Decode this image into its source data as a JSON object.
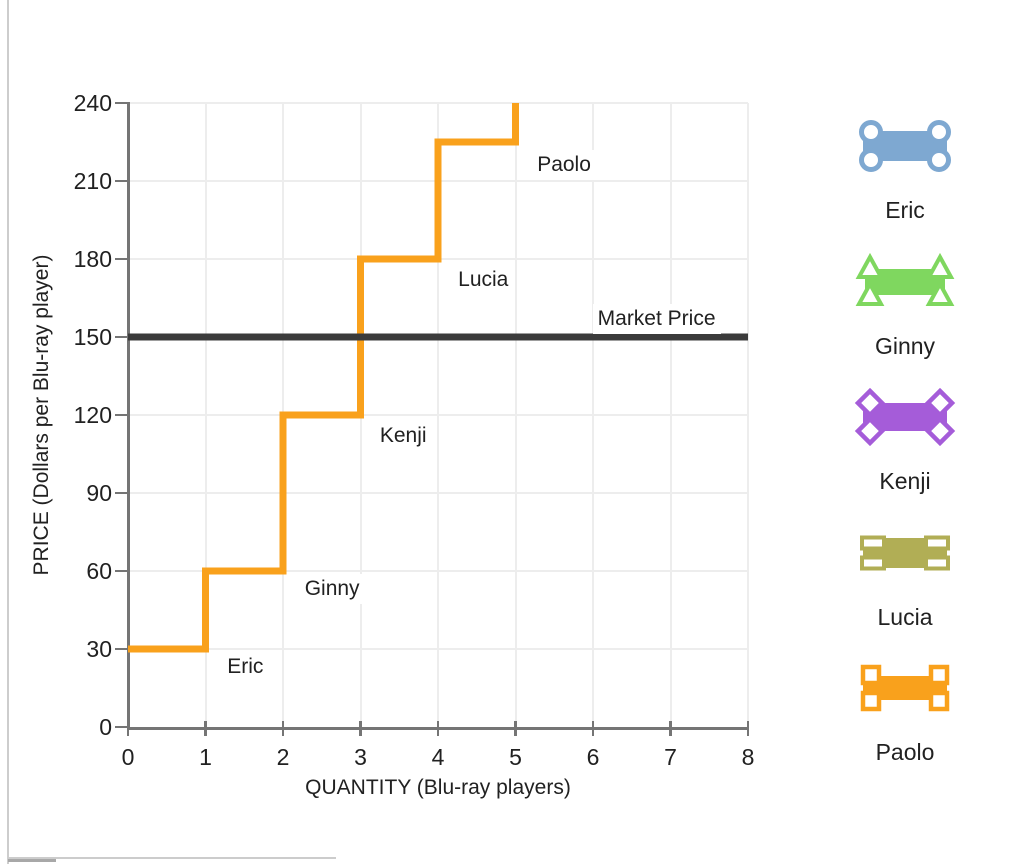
{
  "chart_data": {
    "type": "line",
    "subtype": "step-supply-schedule",
    "xlabel": "QUANTITY (Blu-ray players)",
    "ylabel": "PRICE (Dollars per Blu-ray player)",
    "xlim": [
      0,
      8
    ],
    "ylim": [
      0,
      240
    ],
    "x_ticks": [
      0,
      1,
      2,
      3,
      4,
      5,
      6,
      7,
      8
    ],
    "y_ticks": [
      0,
      30,
      60,
      90,
      120,
      150,
      180,
      210,
      240
    ],
    "grid": "on",
    "supply_steps": [
      {
        "name": "Eric",
        "price": 30,
        "from_q": 0,
        "to_q": 1
      },
      {
        "name": "Ginny",
        "price": 60,
        "from_q": 1,
        "to_q": 2
      },
      {
        "name": "Kenji",
        "price": 120,
        "from_q": 2,
        "to_q": 3
      },
      {
        "name": "Lucia",
        "price": 180,
        "from_q": 3,
        "to_q": 4
      },
      {
        "name": "Paolo",
        "price": 225,
        "from_q": 4,
        "to_q": 5
      }
    ],
    "curve_top": 240,
    "market_price": 150,
    "colors": {
      "supply": "#F9A11C",
      "market": "#3B3B3B"
    },
    "annotations": [
      {
        "text": "Eric",
        "x": 1.28,
        "y": 23
      },
      {
        "text": "Ginny",
        "x": 2.28,
        "y": 53
      },
      {
        "text": "Kenji",
        "x": 3.25,
        "y": 112
      },
      {
        "text": "Lucia",
        "x": 4.26,
        "y": 172
      },
      {
        "text": "Paolo",
        "x": 5.28,
        "y": 216
      },
      {
        "text": "Market Price",
        "x": 6.06,
        "y": 157
      }
    ]
  },
  "legend": {
    "position": "right",
    "items": [
      {
        "label": "Eric",
        "color": "#7EA8D1",
        "marker": "circle"
      },
      {
        "label": "Ginny",
        "color": "#7FD75F",
        "marker": "triangle"
      },
      {
        "label": "Kenji",
        "color": "#A55CD9",
        "marker": "diamond"
      },
      {
        "label": "Lucia",
        "color": "#B1AE55",
        "marker": "rect"
      },
      {
        "label": "Paolo",
        "color": "#F9A11C",
        "marker": "square"
      }
    ]
  }
}
